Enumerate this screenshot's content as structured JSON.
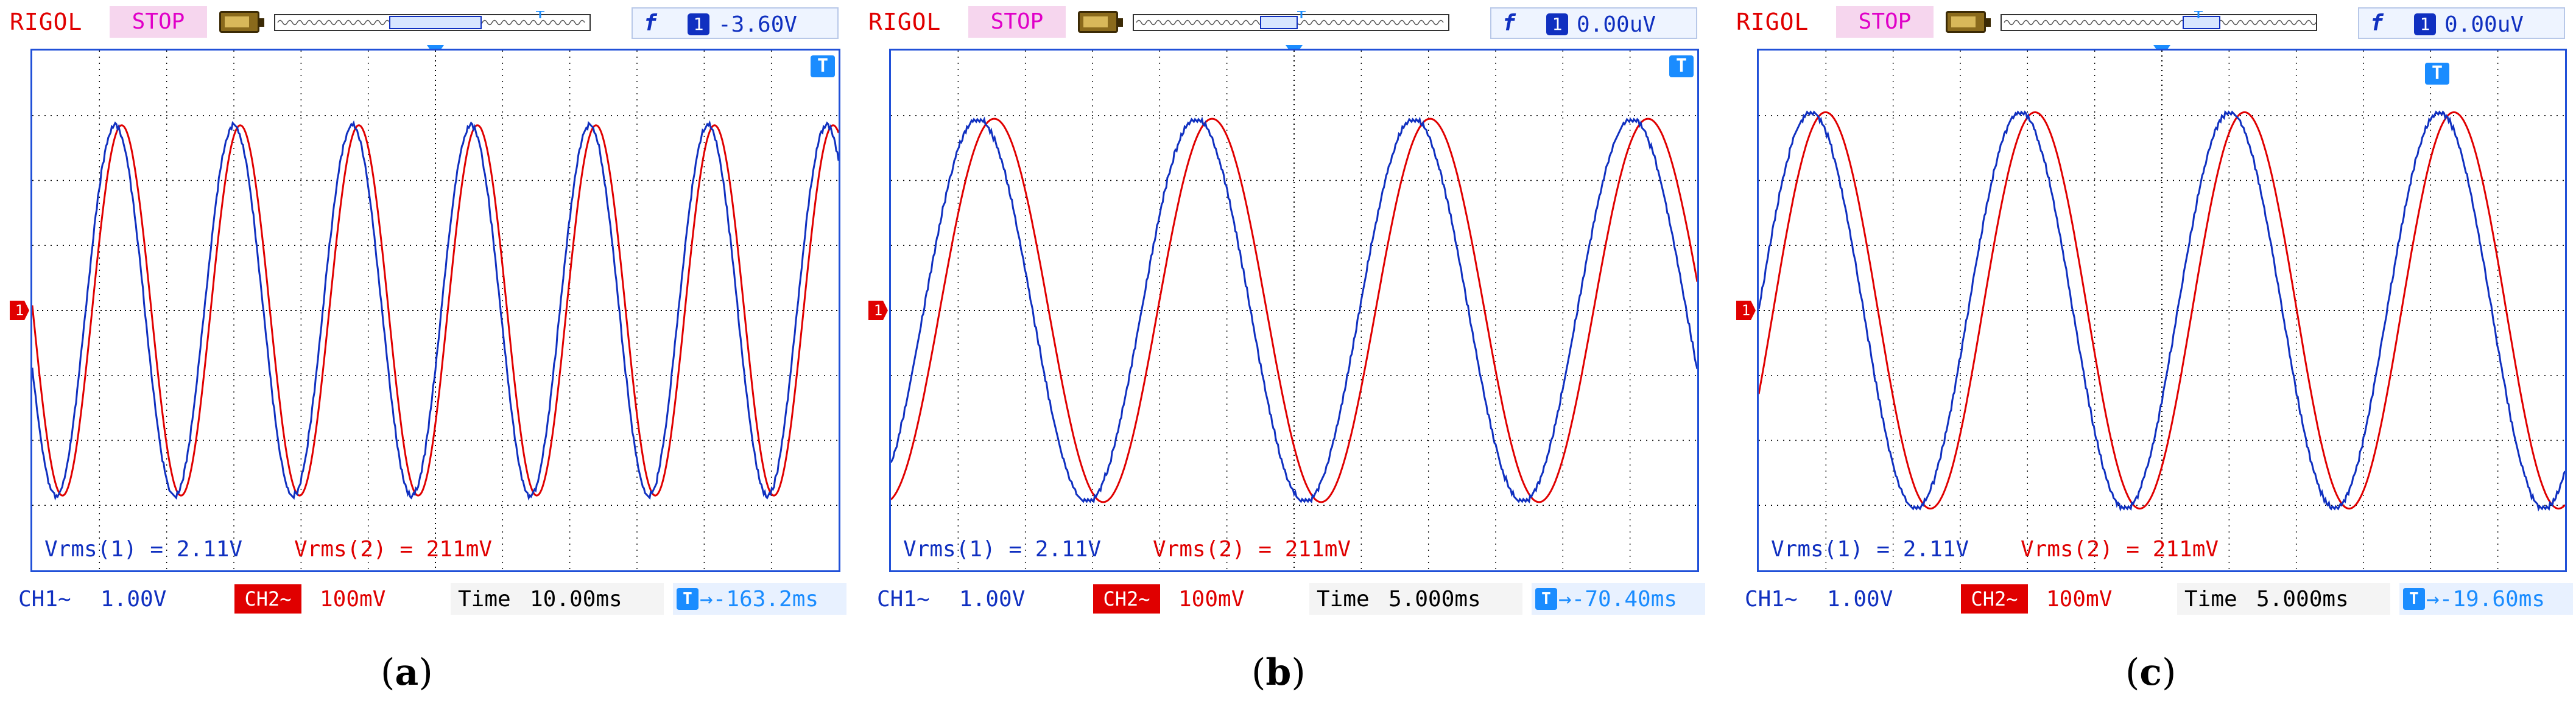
{
  "colors": {
    "ch1": "#1030c0",
    "ch2": "#e00000",
    "frame": "#2050d8",
    "grid": "#000000",
    "stop_bg": "#f6d6ee",
    "stop_text": "#e000c8"
  },
  "icons": {
    "battery": "battery-icon",
    "memory": "memory-depth-icon",
    "trigger_edge": "rising-edge-icon",
    "trigger_position": "trigger-position-icon",
    "t_marker": "trigger-time-marker-icon"
  },
  "panels": [
    {
      "id": "a",
      "caption_letter": "a",
      "brand": "RIGOL",
      "state": "STOP",
      "trigger_edge_glyph": "f",
      "trigger_channel": "1",
      "trigger_level": "-3.60V",
      "ch1_label": "CH1~",
      "ch1_scale": "1.00V",
      "ch2_label": "CH2~",
      "ch2_scale": "100mV",
      "time_label": "Time",
      "time_scale": "10.00ms",
      "offset_glyph": "T",
      "offset_value": "→-163.2ms",
      "meas1": "Vrms(1) = 2.11V",
      "meas2": "Vrms(2) = 211mV",
      "ch_marker": "1",
      "t_marker": "T",
      "cycles": 6.8,
      "phase": 0.55,
      "amp_divs": 2.85,
      "ch2_shift": 0.008
    },
    {
      "id": "b",
      "caption_letter": "b",
      "brand": "RIGOL",
      "state": "STOP",
      "trigger_edge_glyph": "f",
      "trigger_channel": "1",
      "trigger_level": "0.00uV",
      "ch1_label": "CH1~",
      "ch1_scale": "1.00V",
      "ch2_label": "CH2~",
      "ch2_scale": "100mV",
      "time_label": "Time",
      "time_scale": "5.000ms",
      "offset_glyph": "T",
      "offset_value": "→-70.40ms",
      "meas1": "Vrms(1) = 2.11V",
      "meas2": "Vrms(2) = 211mV",
      "ch_marker": "1",
      "t_marker": "T",
      "cycles": 3.7,
      "phase": 0.85,
      "amp_divs": 2.95,
      "ch2_shift": 0.02
    },
    {
      "id": "c",
      "caption_letter": "c",
      "brand": "RIGOL",
      "state": "STOP",
      "trigger_edge_glyph": "f",
      "trigger_channel": "1",
      "trigger_level": "0.00uV",
      "ch1_label": "CH1~",
      "ch1_scale": "1.00V",
      "ch2_label": "CH2~",
      "ch2_scale": "100mV",
      "time_label": "Time",
      "time_scale": "5.000ms",
      "offset_glyph": "T",
      "offset_value": "→-19.60ms",
      "meas1": "Vrms(1) = 2.11V",
      "meas2": "Vrms(2) = 211mV",
      "ch_marker": "1",
      "t_marker": "T",
      "cycles": 3.85,
      "phase": 0.0,
      "amp_divs": 3.05,
      "ch2_shift": 0.018
    }
  ]
}
